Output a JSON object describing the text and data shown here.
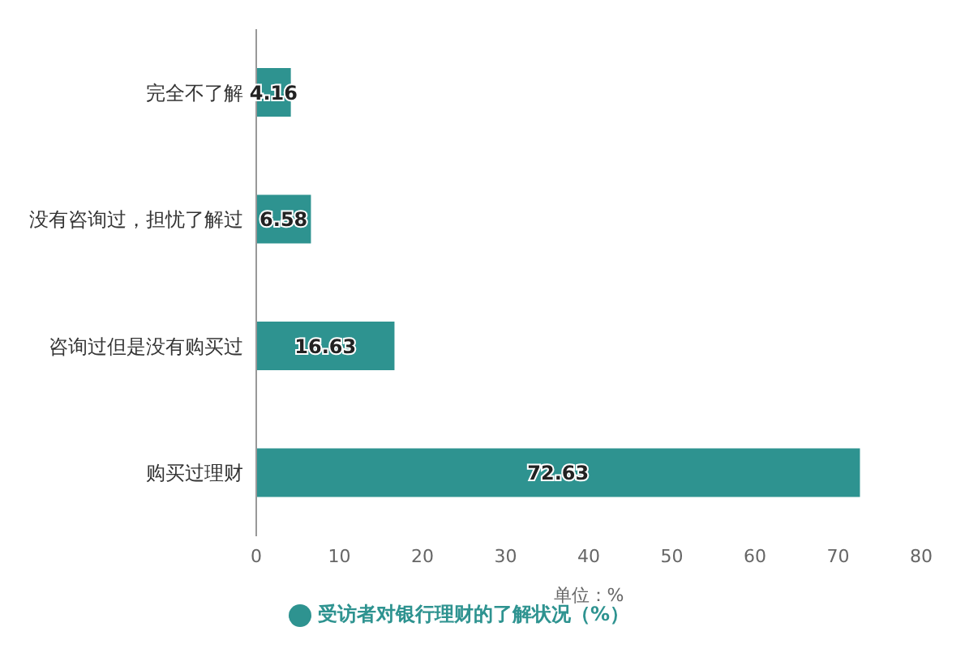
{
  "chart_data": {
    "type": "bar",
    "orientation": "horizontal",
    "categories": [
      "完全不了解",
      "没有咨询过，担忧了解过",
      "咨询过但是没有购买过",
      "购买过理财"
    ],
    "series": [
      {
        "name": "受访者对银行理财的了解状况（%）",
        "color": "#2e9390",
        "values": [
          4.16,
          6.58,
          16.63,
          72.63
        ]
      }
    ],
    "xlim": [
      0,
      80
    ],
    "xticks": [
      0,
      10,
      20,
      30,
      40,
      50,
      60,
      70,
      80
    ],
    "xlabel": "单位：%",
    "data_labels": true,
    "legend": "bottom",
    "grid": false
  }
}
